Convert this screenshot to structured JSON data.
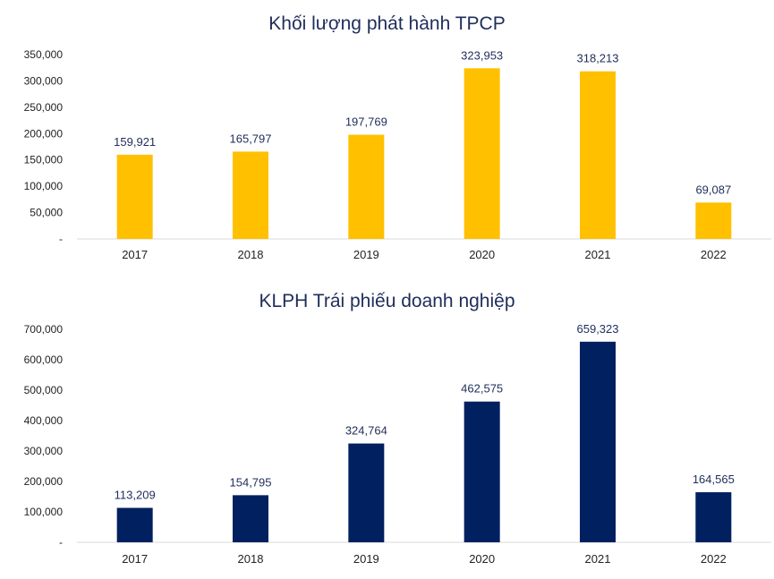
{
  "chart_data": [
    {
      "type": "bar",
      "title": "Khối lượng phát hành TPCP",
      "categories": [
        "2017",
        "2018",
        "2019",
        "2020",
        "2021",
        "2022"
      ],
      "values": [
        159921,
        165797,
        197769,
        323953,
        318213,
        69087
      ],
      "data_labels": [
        "159,921",
        "165,797",
        "197,769",
        "323,953",
        "318,213",
        "69,087"
      ],
      "yticks": [
        0,
        50000,
        100000,
        150000,
        200000,
        250000,
        300000,
        350000
      ],
      "ytick_labels": [
        "-",
        "50,000",
        "100,000",
        "150,000",
        "200,000",
        "250,000",
        "300,000",
        "350,000"
      ],
      "ylim": [
        0,
        350000
      ],
      "bar_color": "#FFC000",
      "grid": false,
      "legend": "none"
    },
    {
      "type": "bar",
      "title": "KLPH Trái phiếu doanh nghiệp",
      "categories": [
        "2017",
        "2018",
        "2019",
        "2020",
        "2021",
        "2022"
      ],
      "values": [
        113209,
        154795,
        324764,
        462575,
        659323,
        164565
      ],
      "data_labels": [
        "113,209",
        "154,795",
        "324,764",
        "462,575",
        "659,323",
        "164,565"
      ],
      "yticks": [
        0,
        100000,
        200000,
        300000,
        400000,
        500000,
        600000,
        700000
      ],
      "ytick_labels": [
        "-",
        "100,000",
        "200,000",
        "300,000",
        "400,000",
        "500,000",
        "600,000",
        "700,000"
      ],
      "ylim": [
        0,
        700000
      ],
      "bar_color": "#002060",
      "grid": false,
      "legend": "none"
    }
  ]
}
